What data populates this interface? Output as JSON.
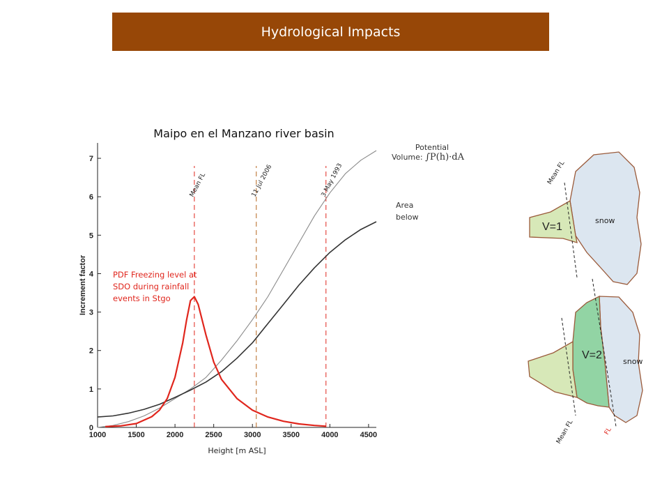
{
  "banner": {
    "title": "Hydrological Impacts"
  },
  "colors": {
    "banner_bg": "#974707",
    "pdf_curve": "#e0261d",
    "area_curve": "#333333",
    "volume_curve": "#8a8a8a",
    "ref_line": "#b5651d"
  },
  "chart_data": {
    "type": "line",
    "title": "Maipo en el Manzano river basin",
    "xlabel": "Height [m ASL]",
    "ylabel": "Increment factor",
    "xlim": [
      1000,
      4600
    ],
    "ylim": [
      0,
      7.4
    ],
    "xticks": [
      1000,
      1500,
      2000,
      2500,
      3000,
      3500,
      4000,
      4500
    ],
    "yticks": [
      0,
      1,
      2,
      3,
      4,
      5,
      6,
      7
    ],
    "series": [
      {
        "name": "Potential Volume",
        "style": "gray-thin",
        "x": [
          1000,
          1200,
          1400,
          1600,
          1800,
          2000,
          2200,
          2400,
          2600,
          2800,
          3000,
          3200,
          3400,
          3600,
          3800,
          4000,
          4200,
          4400,
          4600
        ],
        "y": [
          0,
          0.05,
          0.15,
          0.3,
          0.5,
          0.75,
          1.0,
          1.3,
          1.75,
          2.25,
          2.8,
          3.4,
          4.1,
          4.8,
          5.5,
          6.1,
          6.6,
          6.95,
          7.2
        ]
      },
      {
        "name": "Area below",
        "style": "dark",
        "x": [
          1000,
          1200,
          1400,
          1600,
          1800,
          2000,
          2200,
          2400,
          2600,
          2800,
          3000,
          3200,
          3400,
          3600,
          3800,
          4000,
          4200,
          4400,
          4600
        ],
        "y": [
          0.27,
          0.3,
          0.37,
          0.47,
          0.6,
          0.78,
          0.97,
          1.18,
          1.45,
          1.8,
          2.2,
          2.7,
          3.2,
          3.7,
          4.15,
          4.55,
          4.88,
          5.15,
          5.35
        ]
      },
      {
        "name": "PDF Freezing level",
        "style": "red",
        "x": [
          1100,
          1300,
          1500,
          1700,
          1800,
          1900,
          2000,
          2100,
          2150,
          2200,
          2250,
          2300,
          2400,
          2500,
          2600,
          2800,
          3000,
          3200,
          3400,
          3600,
          3800,
          3950
        ],
        "y": [
          0.02,
          0.04,
          0.1,
          0.28,
          0.45,
          0.75,
          1.3,
          2.2,
          2.8,
          3.3,
          3.4,
          3.2,
          2.4,
          1.7,
          1.25,
          0.75,
          0.45,
          0.27,
          0.16,
          0.09,
          0.05,
          0.03
        ]
      }
    ],
    "reference_lines": [
      {
        "label": "Mean FL",
        "x": 2250,
        "style": "red-dash"
      },
      {
        "label": "11 Jul 2006",
        "x": 3050,
        "style": "brown-dash"
      },
      {
        "label": "3 May 1993",
        "x": 3950,
        "style": "red-dash"
      }
    ]
  },
  "annotations": {
    "potential_line1": "Potential",
    "potential_line2": "Volume:",
    "potential_formula": "∫P(h)·dA",
    "area_line1": "Area",
    "area_line2": "below",
    "pdf_line1": "PDF Freezing level at",
    "pdf_line2": "SDO during rainfall",
    "pdf_line3": "events in Stgo"
  },
  "diagram": {
    "top": {
      "volume_label": "V=1",
      "snow_label": "snow",
      "mean_fl_label": "Mean FL"
    },
    "bottom": {
      "volume_label": "V=2",
      "snow_label": "snow",
      "mean_fl_label": "Mean FL",
      "fl_label": "FL"
    }
  }
}
